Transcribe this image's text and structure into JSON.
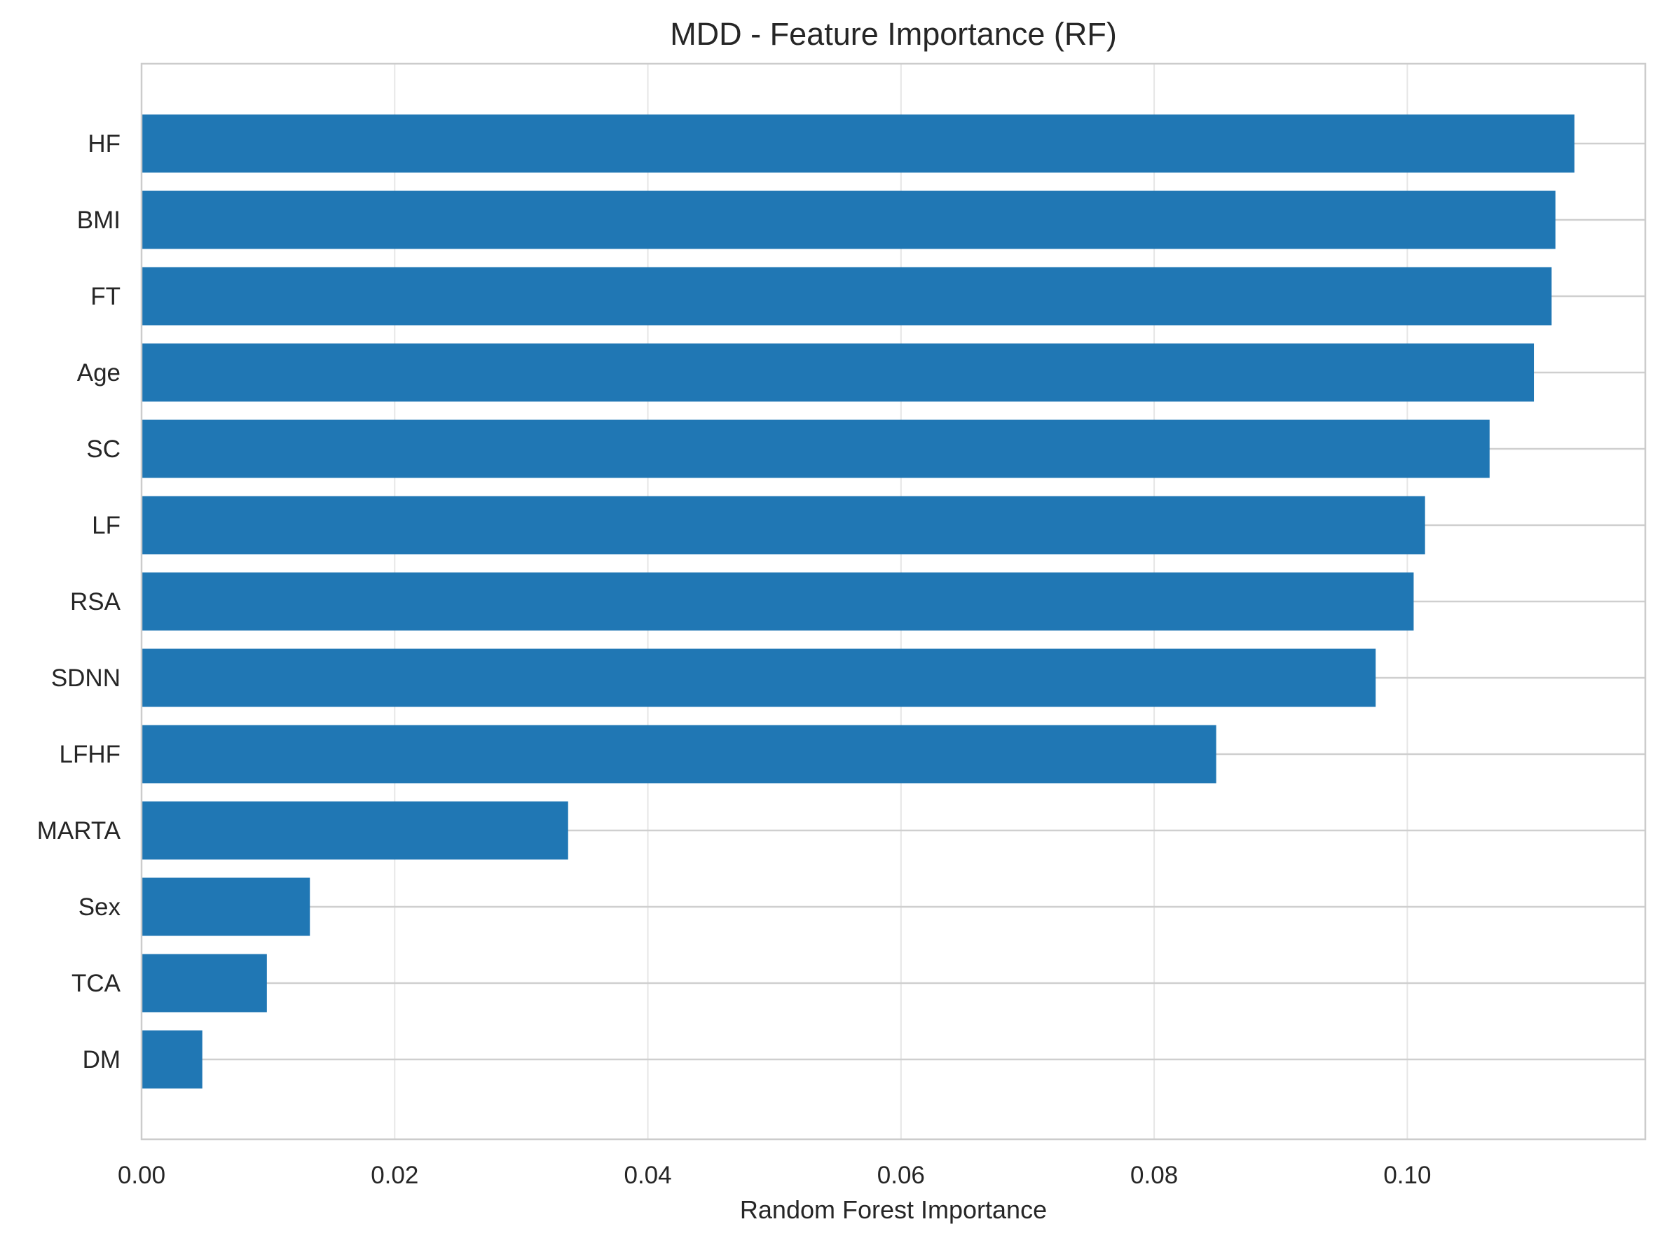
{
  "chart_data": {
    "type": "bar",
    "orientation": "horizontal",
    "title": "MDD - Feature Importance (RF)",
    "xlabel": "Random Forest Importance",
    "ylabel": "",
    "xlim": [
      0,
      0.1188
    ],
    "xticks": [
      "0.00",
      "0.02",
      "0.04",
      "0.06",
      "0.08",
      "0.10"
    ],
    "xtick_values": [
      0,
      0.02,
      0.04,
      0.06,
      0.08,
      0.1
    ],
    "grid": true,
    "bar_color": "#2077b4",
    "grid_color": "#e6e6e6",
    "ygrid_color": "#cfcfcf",
    "spine_color": "#cccccc",
    "categories": [
      "HF",
      "BMI",
      "FT",
      "Age",
      "SC",
      "LF",
      "RSA",
      "SDNN",
      "LFHF",
      "MARTA",
      "Sex",
      "TCA",
      "DM"
    ],
    "values": [
      0.1132,
      0.1117,
      0.1114,
      0.11,
      0.1065,
      0.1014,
      0.1005,
      0.0975,
      0.0849,
      0.0337,
      0.0133,
      0.0099,
      0.0048
    ]
  }
}
